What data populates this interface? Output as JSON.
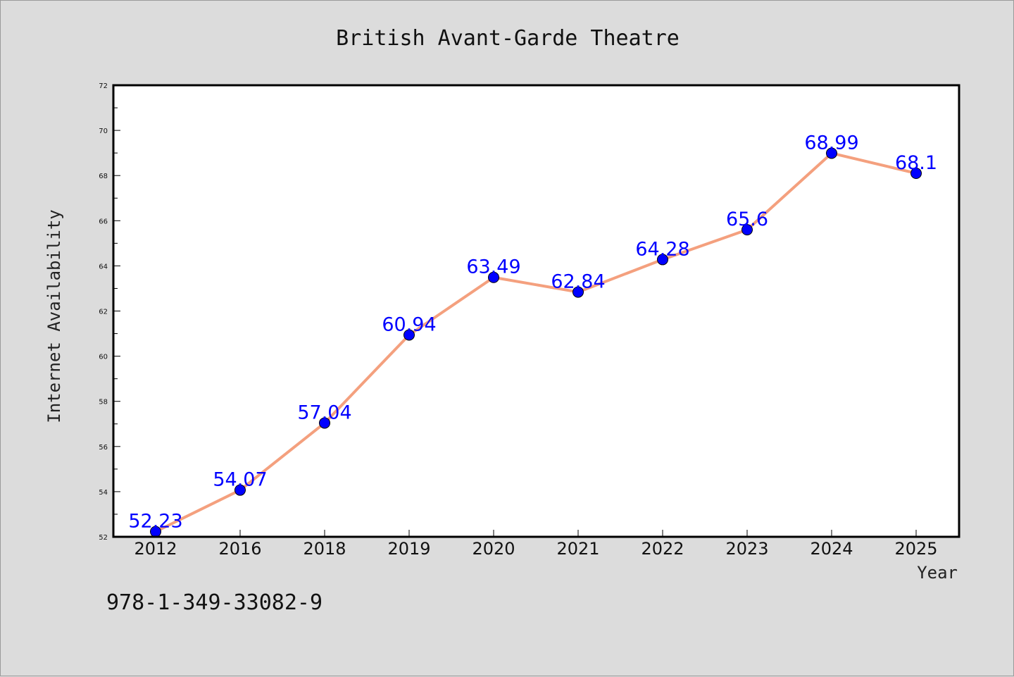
{
  "chart_data": {
    "type": "line",
    "title": "British Avant-Garde Theatre",
    "xlabel": "Year",
    "ylabel": "Internet Availability",
    "categories": [
      "2012",
      "2016",
      "2018",
      "2019",
      "2020",
      "2021",
      "2022",
      "2023",
      "2024",
      "2025"
    ],
    "series": [
      {
        "values": [
          52.23,
          54.07,
          57.04,
          60.94,
          63.49,
          62.84,
          64.28,
          65.6,
          68.99,
          68.1
        ],
        "labels": [
          "52.23",
          "54.07",
          "57.04",
          "60.94",
          "63.49",
          "62.84",
          "64.28",
          "65.6",
          "68.99",
          "68.1"
        ],
        "line_color": "#f4a07e",
        "marker_color": "#0000ff"
      }
    ],
    "ylim": [
      52,
      72
    ],
    "yticks": [
      52,
      54,
      56,
      58,
      60,
      62,
      64,
      66,
      68,
      70,
      72
    ],
    "grid": false,
    "legend": "none"
  },
  "footer": {
    "isbn": "978-1-349-33082-9"
  }
}
